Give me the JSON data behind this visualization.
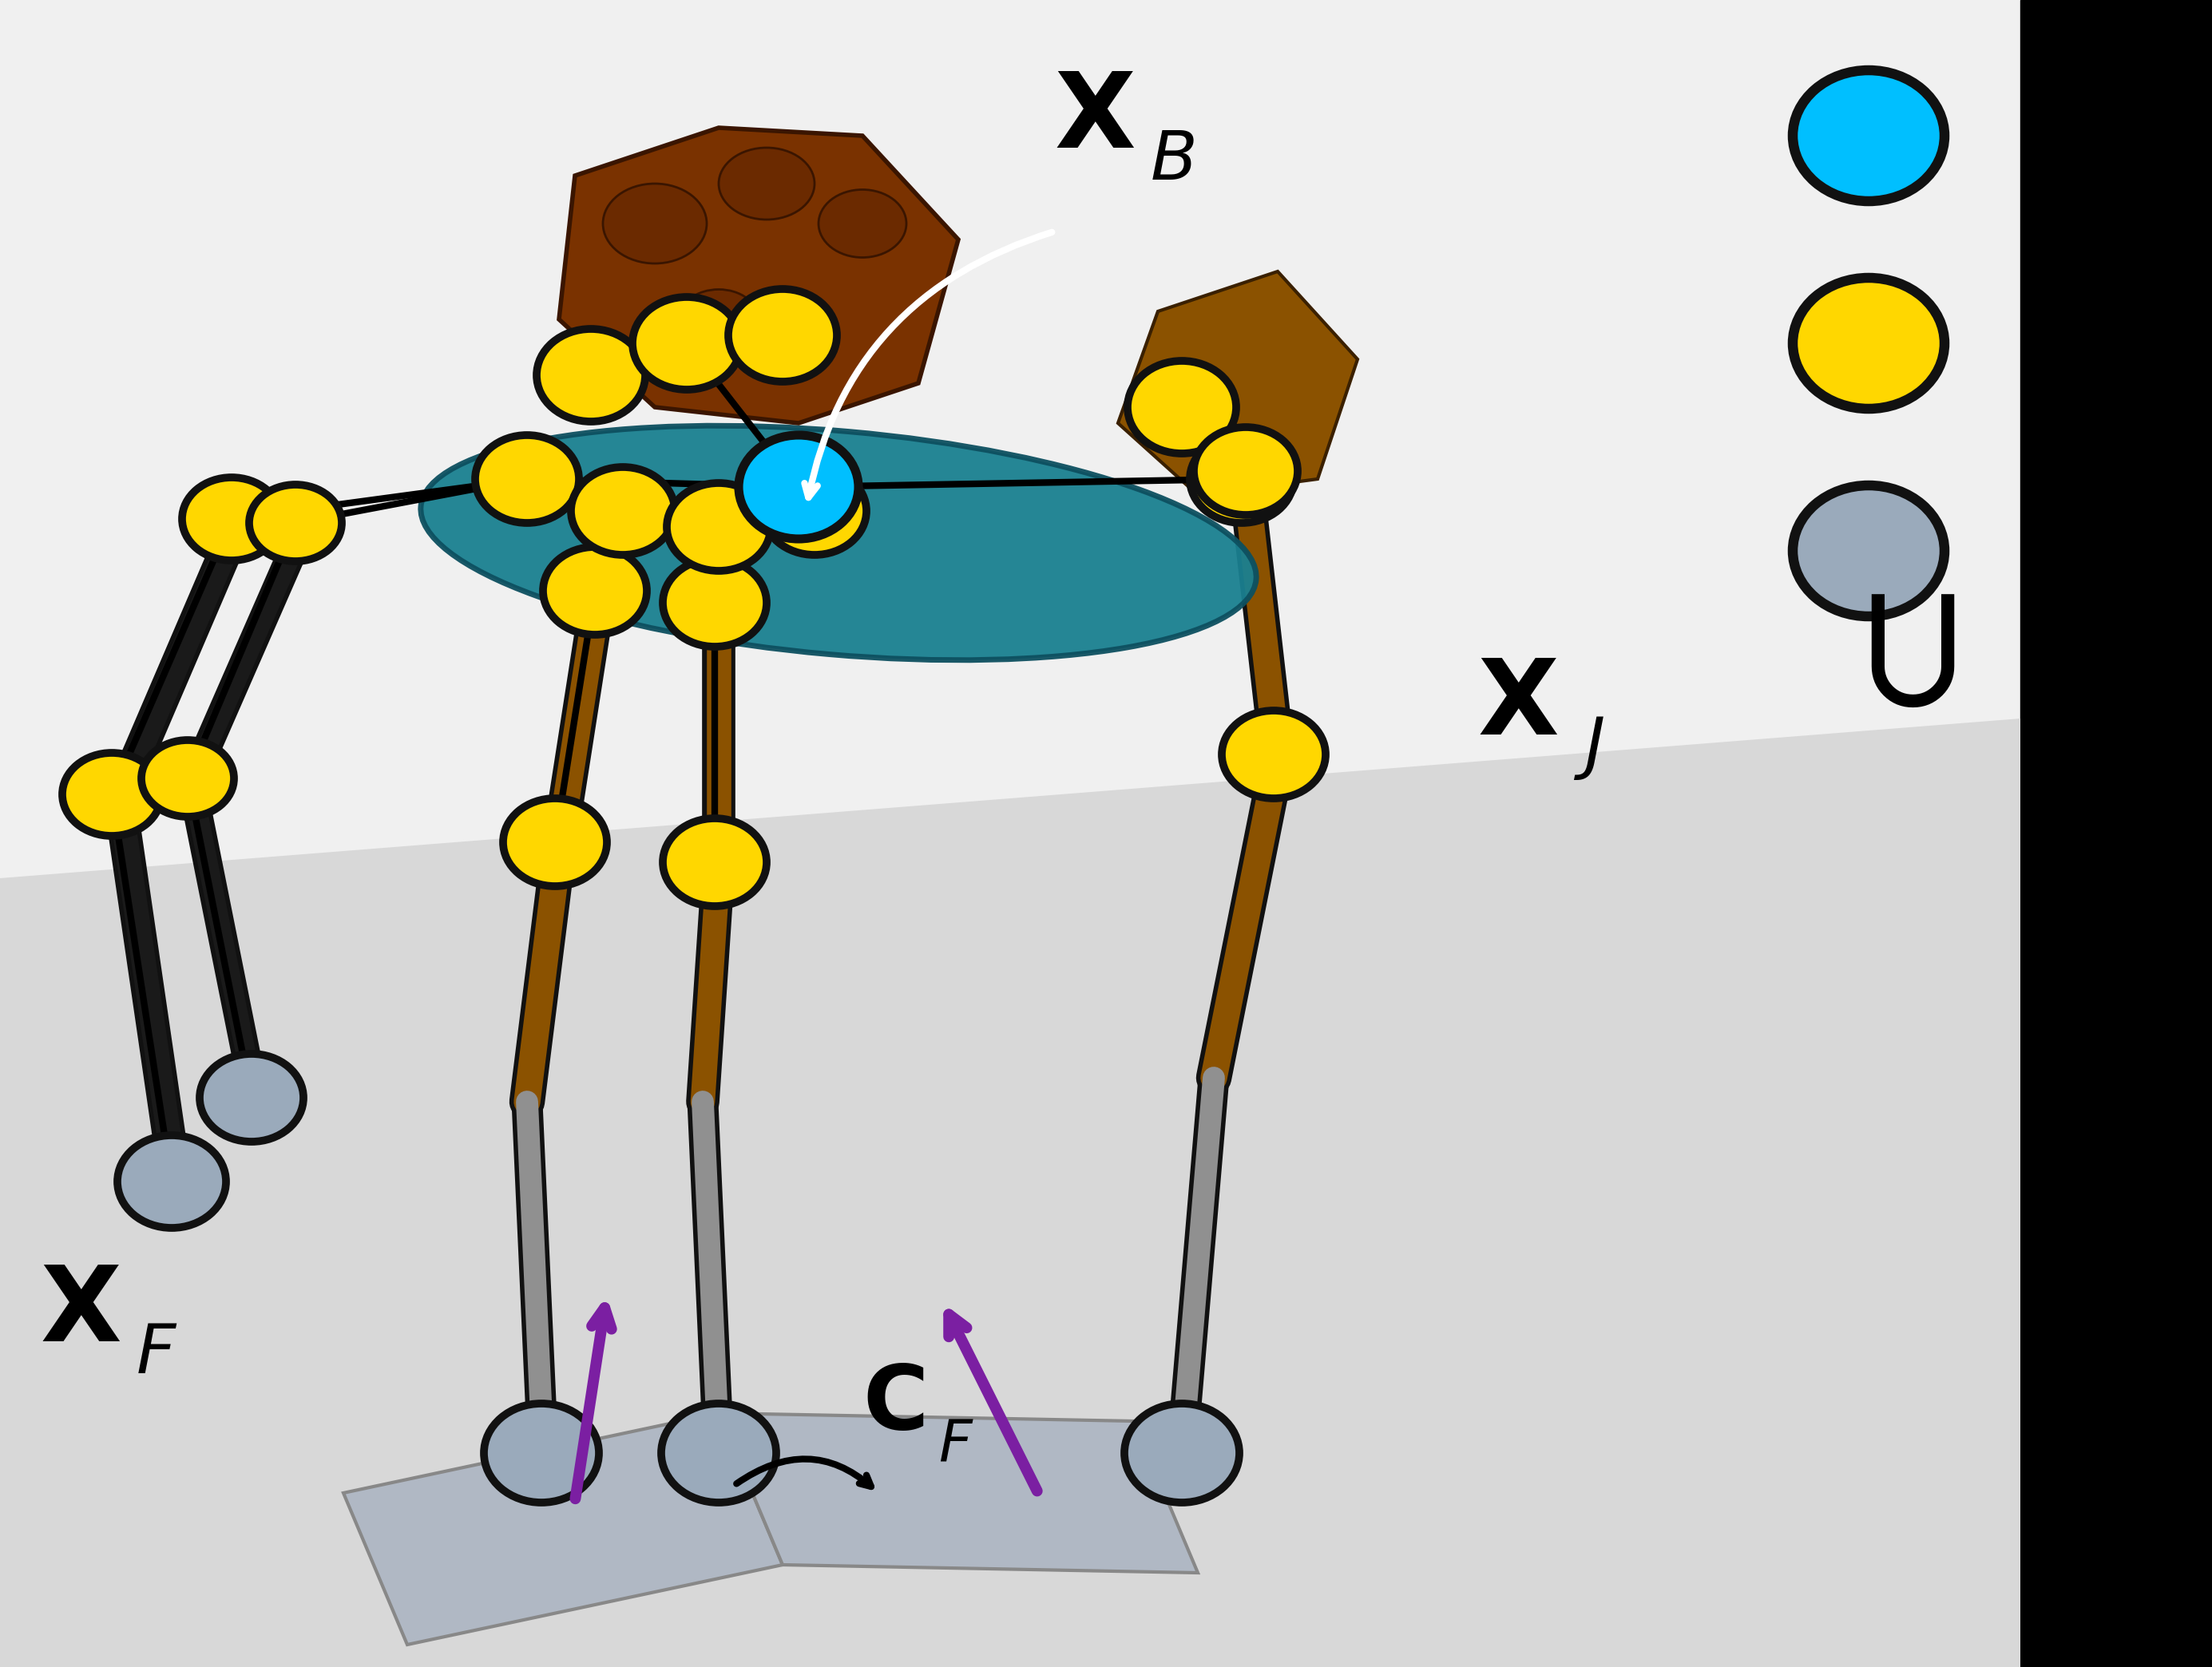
{
  "bg_color": "#f0f0f0",
  "black_panel_color": "#000000",
  "robot_body_color": "#1a8090",
  "leg_brown": "#8B5200",
  "leg_black": "#1a1a1a",
  "leg_gray": "#909090",
  "node_yellow": "#FFD700",
  "node_blue": "#00BFFF",
  "node_gray": "#9aaabb",
  "arrow_purple": "#7B1FA2",
  "ground_color": "#b8bfc8",
  "text_color": "#111111",
  "label_XB": "X",
  "label_XB_sub": "B",
  "label_XJ": "X",
  "label_XJ_sub": "J",
  "label_XF": "X",
  "label_XF_sub": "F",
  "label_CF": "C",
  "label_CF_sub": "F",
  "legend_node_blue": "#00BFFF",
  "legend_node_yellow": "#FFD700",
  "legend_node_gray": "#9aaabb"
}
